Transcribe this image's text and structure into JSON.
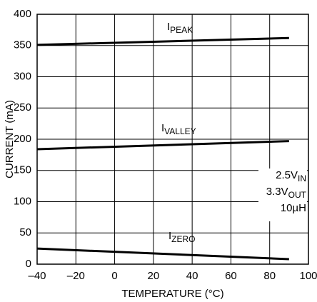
{
  "chart_data": {
    "type": "line",
    "x_label": "TEMPERATURE (°C)",
    "y_label": "CURRENT (mA)",
    "x": [
      -40,
      90
    ],
    "series": [
      {
        "name": {
          "main": "I",
          "sub": "PEAK"
        },
        "color": "#000000",
        "values": [
          351,
          362
        ]
      },
      {
        "name": {
          "main": "I",
          "sub": "VALLEY"
        },
        "color": "#000000",
        "values": [
          184,
          197
        ]
      },
      {
        "name": {
          "main": "I",
          "sub": "ZERO"
        },
        "color": "#000000",
        "values": [
          25,
          8
        ]
      }
    ],
    "annotation": [
      {
        "main": "2.5V",
        "sub": "IN"
      },
      {
        "main": "3.3V",
        "sub": "OUT"
      },
      {
        "main": "10µH",
        "sub": ""
      }
    ],
    "xlim": [
      -40,
      100
    ],
    "xticks": [
      {
        "value": -40,
        "label": "–40"
      },
      {
        "value": -20,
        "label": "–20"
      },
      0,
      20,
      40,
      60,
      80,
      100
    ],
    "ylim": [
      0,
      400
    ],
    "yticks": [
      0,
      50,
      100,
      150,
      200,
      250,
      300,
      350,
      400
    ],
    "grid": true
  }
}
